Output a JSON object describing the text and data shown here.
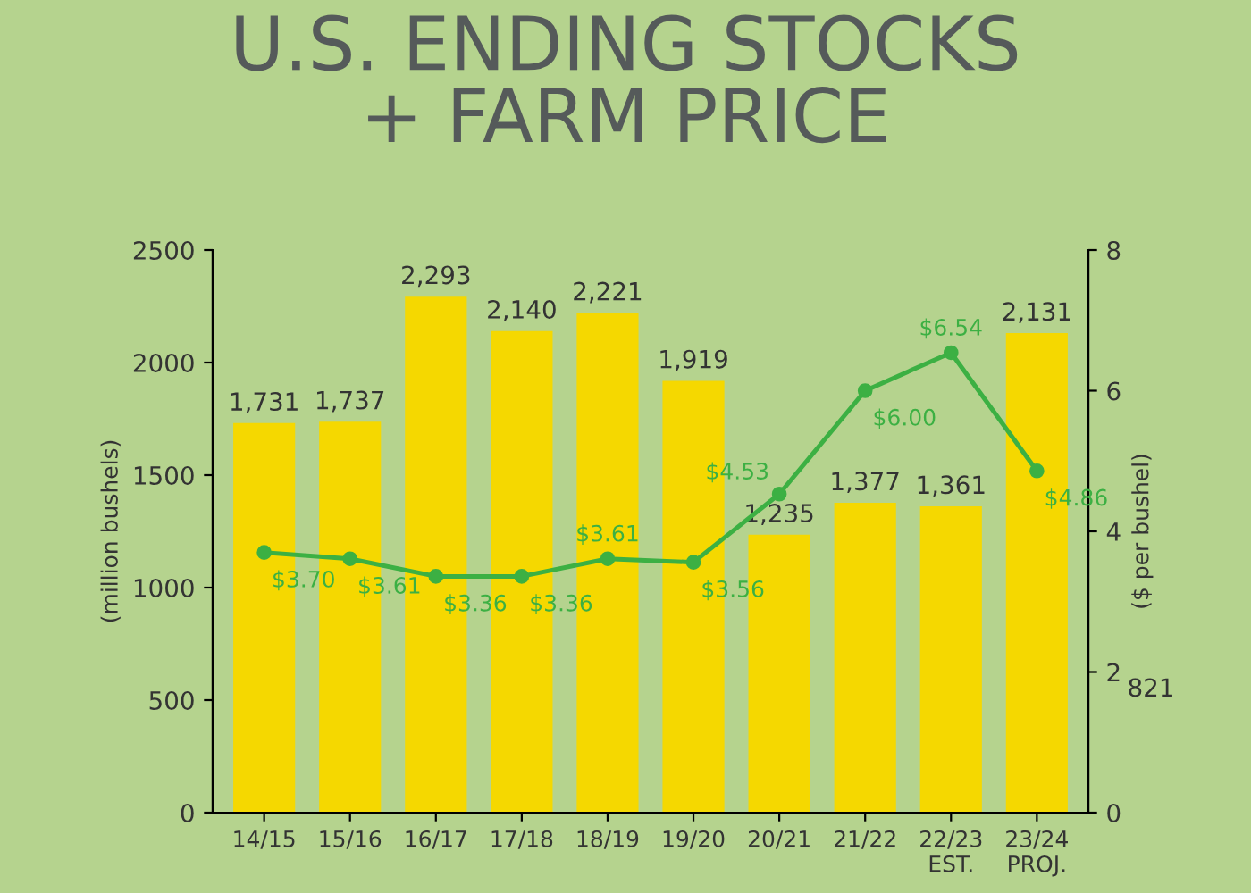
{
  "chart_data": {
    "type": "bar",
    "title": "U.S. ENDING STOCKS\n+ FARM PRICE",
    "ylabel": "(million bushels)",
    "y2label": "($ per bushel)",
    "categories": [
      "14/15",
      "15/16",
      "16/17",
      "17/18",
      "18/19",
      "19/20",
      "20/21",
      "21/22",
      "22/23\nEST.",
      "23/24\nPROJ."
    ],
    "series": [
      {
        "color": "#f5d800",
        "values": [
          1731,
          1737,
          2293,
          2140,
          2221,
          1919,
          1235,
          1377,
          1361,
          2131
        ],
        "value_labels": [
          "1,731",
          "1,737",
          "2,293",
          "2,140",
          "2,221",
          "1,919",
          "1,235",
          "1,377",
          "1,361",
          "2,131"
        ]
      },
      {
        "type": "line",
        "axis": "y2",
        "color": "#3cb043",
        "marker": "circle",
        "values": [
          3.7,
          3.61,
          3.36,
          3.36,
          3.61,
          3.56,
          4.53,
          6.0,
          6.54,
          4.86
        ],
        "value_labels": [
          "$3.70",
          "$3.61",
          "$3.36",
          "$3.36",
          "$3.61",
          "$3.56",
          "$4.53",
          "$6.00",
          "$6.54",
          "$4.86"
        ]
      }
    ],
    "ylim": [
      0,
      2500
    ],
    "yticks": [
      0,
      500,
      1000,
      1500,
      2000,
      2500
    ],
    "y2lim": [
      0,
      8
    ],
    "y2ticks": [
      0,
      2,
      4,
      6,
      8
    ],
    "annotations": [
      "821"
    ],
    "grid": false,
    "legend": false
  }
}
